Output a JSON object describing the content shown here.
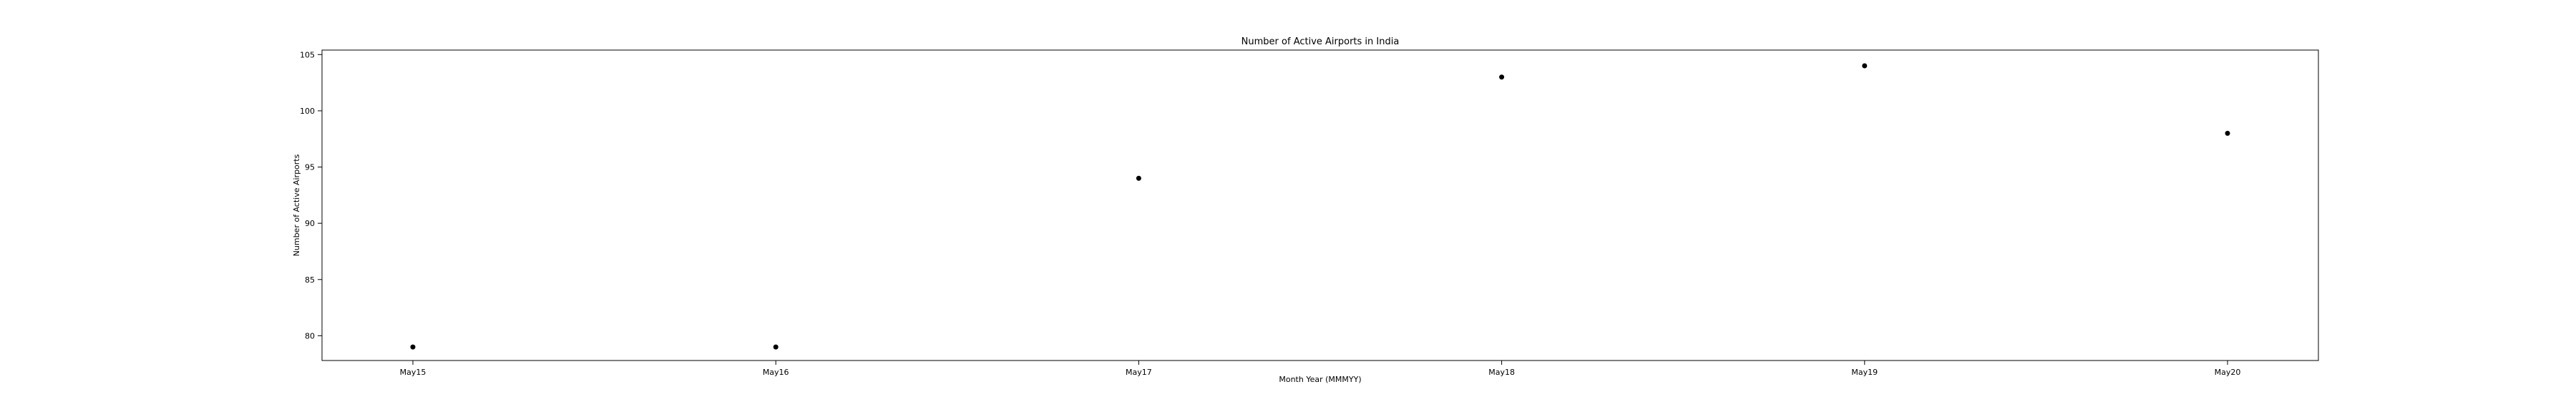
{
  "chart_data": {
    "type": "scatter",
    "title": "Number of Active Airports in India",
    "xlabel": "Month Year (MMMYY)",
    "ylabel": "Number of Active Airports",
    "categories": [
      "May15",
      "May16",
      "May17",
      "May18",
      "May19",
      "May20"
    ],
    "series": [
      {
        "values": [
          79,
          79,
          94,
          103,
          104,
          98
        ]
      }
    ],
    "ylim": [
      77.8,
      105.4
    ],
    "yticks": [
      80,
      85,
      90,
      95,
      100,
      105
    ],
    "grid": false,
    "colors": {
      "point": "#000000",
      "axes": "#000000",
      "background": "#ffffff"
    }
  }
}
